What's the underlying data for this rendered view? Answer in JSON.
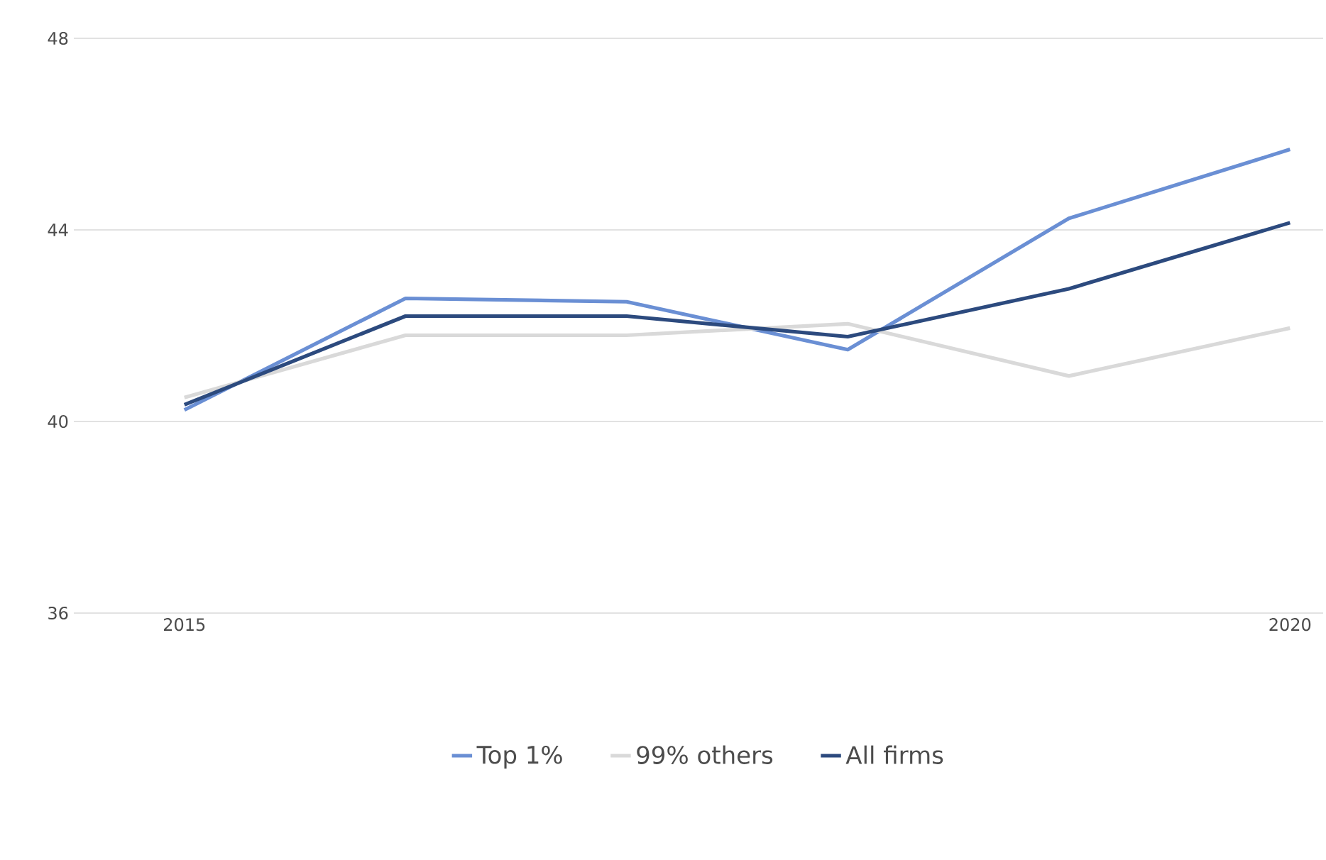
{
  "chart_data": {
    "type": "line",
    "categories": [
      "2015",
      null,
      null,
      null,
      null,
      "2020"
    ],
    "ylim": [
      36,
      48
    ],
    "yticks": [
      36,
      40,
      44,
      48
    ],
    "grid": "y",
    "legend": "bottom",
    "marker": "none",
    "line_style": "solid",
    "series": [
      {
        "name": "Top 1%",
        "color": "#6a8fd4",
        "values": [
          40.24,
          42.57,
          42.5,
          41.5,
          44.24,
          45.68
        ]
      },
      {
        "name": "99% others",
        "color": "#d9d9d9",
        "values": [
          40.5,
          41.8,
          41.8,
          42.04,
          40.95,
          41.95
        ]
      },
      {
        "name": "All firms",
        "color": "#2c4a7e",
        "values": [
          40.35,
          42.2,
          42.2,
          41.77,
          42.77,
          44.15
        ]
      }
    ]
  }
}
